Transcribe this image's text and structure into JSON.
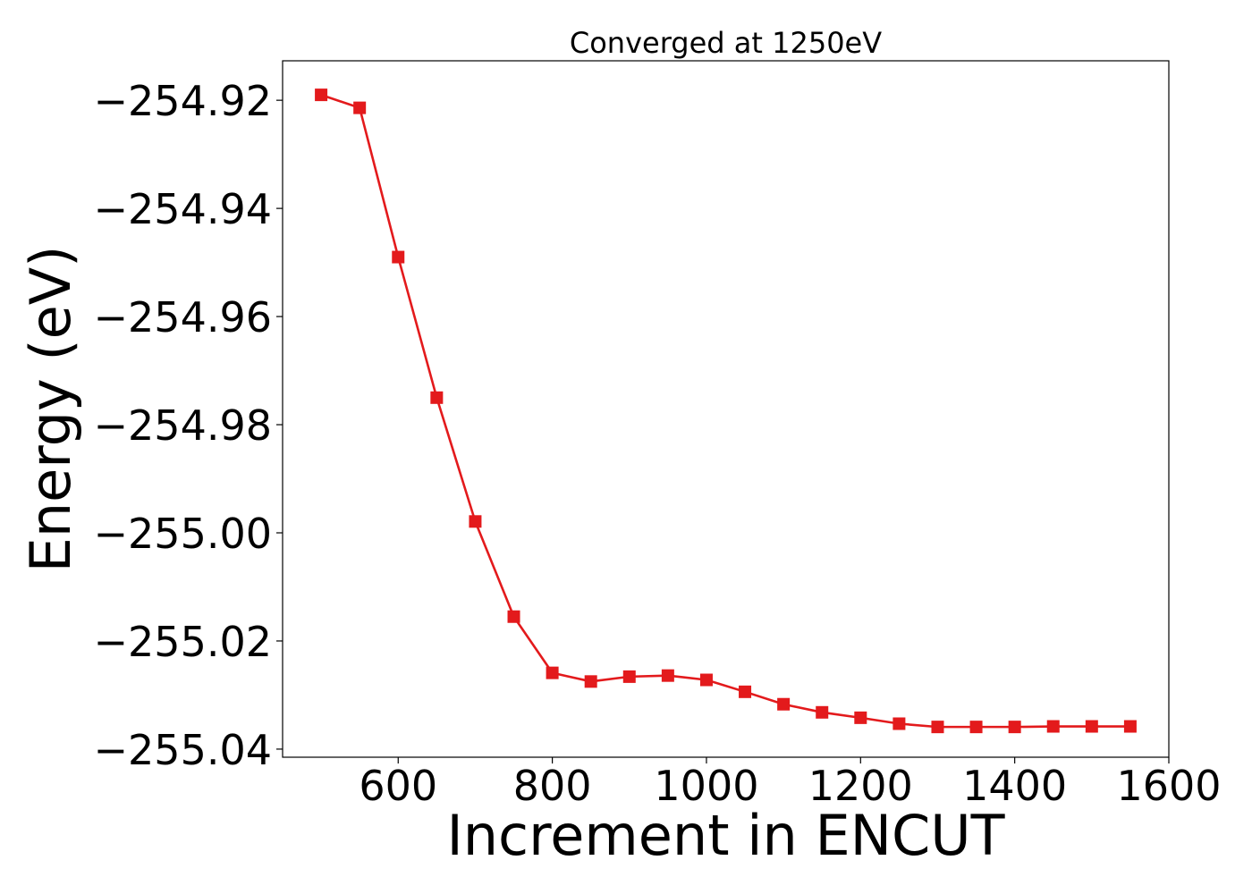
{
  "chart_data": {
    "type": "line",
    "title": "Converged at 1250eV",
    "xlabel": "Increment in ENCUT",
    "ylabel": "Energy (eV)",
    "xlim": [
      450,
      1600
    ],
    "ylim": [
      -255.0415,
      -254.9127
    ],
    "xticks": [
      600,
      800,
      1000,
      1200,
      1400,
      1600
    ],
    "yticks": [
      -254.92,
      -254.94,
      -254.96,
      -254.98,
      -255.0,
      -255.02,
      -255.04
    ],
    "ytick_labels": [
      "−254.92",
      "−254.94",
      "−254.96",
      "−254.98",
      "−255.00",
      "−255.02",
      "−255.04"
    ],
    "grid": false,
    "legend": "none",
    "series": [
      {
        "color": "#e31a1c",
        "marker": "square",
        "x": [
          500,
          550,
          600,
          650,
          700,
          750,
          800,
          850,
          900,
          950,
          1000,
          1050,
          1100,
          1150,
          1200,
          1250,
          1300,
          1350,
          1400,
          1450,
          1500,
          1550
        ],
        "y": [
          -254.919,
          -254.9214,
          -254.949,
          -254.975,
          -254.9979,
          -255.0155,
          -255.0259,
          -255.0275,
          -255.0266,
          -255.0264,
          -255.0272,
          -255.0294,
          -255.0317,
          -255.0332,
          -255.0342,
          -255.0353,
          -255.0359,
          -255.0359,
          -255.0359,
          -255.0358,
          -255.0358,
          -255.0358
        ]
      }
    ]
  }
}
